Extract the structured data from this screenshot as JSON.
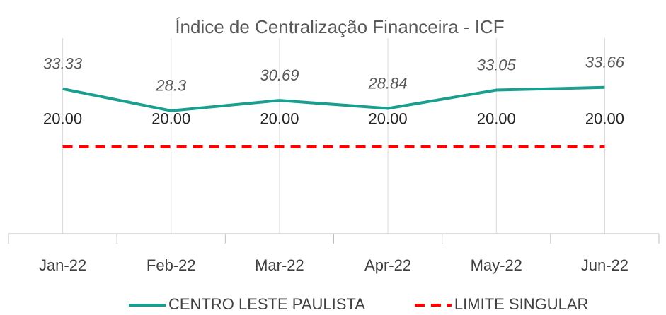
{
  "chart_data": {
    "type": "line",
    "title": "Índice de Centralização Financeira - ICF",
    "categories": [
      "Jan-22",
      "Feb-22",
      "Mar-22",
      "Apr-22",
      "May-22",
      "Jun-22"
    ],
    "series": [
      {
        "name": "CENTRO LESTE PAULISTA",
        "color": "#1a9e8f",
        "dash": false,
        "values": [
          33.33,
          28.3,
          30.69,
          28.84,
          33.05,
          33.66
        ]
      },
      {
        "name": "LIMITE SINGULAR",
        "color": "#ff0000",
        "dash": true,
        "values": [
          20,
          20,
          20,
          20,
          20,
          20
        ],
        "value_labels": [
          "20.00",
          "20.00",
          "20.00",
          "20.00",
          "20.00",
          "20.00"
        ]
      }
    ],
    "ylim": [
      0,
      45
    ],
    "grid": true,
    "legend": "bottom"
  }
}
